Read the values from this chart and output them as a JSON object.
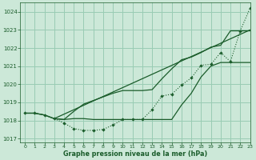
{
  "background_color": "#cce8d8",
  "plot_bg_color": "#cce8d8",
  "grid_color": "#99ccb3",
  "line_color": "#1a5c2a",
  "title": "Graphe pression niveau de la mer (hPa)",
  "xlim": [
    -0.5,
    23
  ],
  "ylim": [
    1016.8,
    1024.5
  ],
  "yticks": [
    1017,
    1018,
    1019,
    1020,
    1021,
    1022,
    1023,
    1024
  ],
  "xticks": [
    0,
    1,
    2,
    3,
    4,
    5,
    6,
    7,
    8,
    9,
    10,
    11,
    12,
    13,
    14,
    15,
    16,
    17,
    18,
    19,
    20,
    21,
    22,
    23
  ],
  "dot_x": [
    0,
    1,
    2,
    3,
    4,
    5,
    6,
    7,
    8,
    9,
    10,
    11,
    12,
    13,
    14,
    15,
    16,
    17,
    18,
    19,
    20,
    21,
    22,
    23
  ],
  "dot_y": [
    1018.4,
    1018.4,
    1018.3,
    1018.1,
    1017.85,
    1017.55,
    1017.45,
    1017.45,
    1017.5,
    1017.75,
    1018.05,
    1018.05,
    1018.05,
    1018.6,
    1019.35,
    1019.45,
    1019.95,
    1020.35,
    1021.05,
    1021.1,
    1021.75,
    1021.25,
    1022.95,
    1024.2
  ],
  "line1_x": [
    0,
    1,
    2,
    3,
    4,
    5,
    6,
    7,
    8,
    9,
    10,
    11,
    12,
    13,
    14,
    15,
    16,
    17,
    18,
    19,
    20,
    21,
    22,
    23
  ],
  "line1_y": [
    1018.4,
    1018.4,
    1018.3,
    1018.1,
    1018.05,
    1018.1,
    1018.1,
    1018.05,
    1018.05,
    1018.05,
    1018.05,
    1018.05,
    1018.05,
    1018.05,
    1018.05,
    1018.05,
    1018.85,
    1019.5,
    1020.4,
    1021.0,
    1021.2,
    1021.2,
    1021.2,
    1021.2
  ],
  "line2_x": [
    0,
    1,
    2,
    3,
    23
  ],
  "line2_y": [
    1018.4,
    1018.4,
    1018.3,
    1018.1,
    1023.0
  ],
  "line3_x": [
    3,
    4,
    5,
    6,
    7,
    8,
    9,
    10,
    11,
    12,
    13,
    14,
    15,
    16,
    17,
    18,
    19,
    20,
    21,
    22,
    23
  ],
  "line3_y": [
    1018.1,
    1018.05,
    1018.5,
    1018.9,
    1019.1,
    1019.3,
    1019.5,
    1019.65,
    1019.65,
    1019.65,
    1019.7,
    1020.3,
    1020.85,
    1021.35,
    1021.5,
    1021.75,
    1022.05,
    1022.15,
    1022.95,
    1022.95,
    1022.95
  ]
}
